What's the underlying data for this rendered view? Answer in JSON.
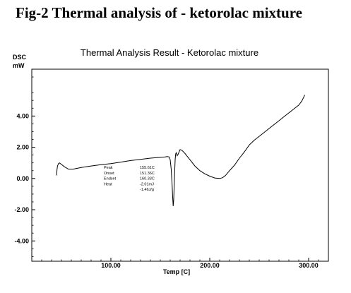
{
  "figure": {
    "caption": "Fig-2 Thermal analysis of - ketorolac mixture"
  },
  "chart_data": {
    "type": "line",
    "title": "Thermal Analysis Result - Ketorolac mixture",
    "ylabel_lines": [
      "DSC",
      "mW"
    ],
    "xlabel": "Temp [C]",
    "xlim": [
      20,
      320
    ],
    "ylim": [
      -5.3,
      7.0
    ],
    "x_ticks": [
      100,
      200,
      300
    ],
    "x_tick_labels": [
      "100.00",
      "200.00",
      "300.00"
    ],
    "y_ticks": [
      4,
      2,
      0,
      -2,
      -4
    ],
    "y_tick_labels": [
      "4.00",
      "2.00",
      "0.00",
      "-2.00",
      "-4.00"
    ],
    "grid": false,
    "colors": {
      "line": "#000000",
      "axes": "#000000"
    },
    "series": [
      {
        "x": [
          45,
          45.5,
          46,
          47,
          48,
          50,
          53,
          57,
          62,
          70,
          80,
          90,
          100,
          110,
          120,
          130,
          140,
          150,
          155,
          157,
          159,
          160,
          161,
          162,
          162.5,
          163,
          163.5,
          164,
          164.5,
          165,
          165.5,
          166,
          166.5,
          167,
          168,
          170,
          172,
          175,
          180,
          185,
          190,
          195,
          200,
          205,
          210,
          213,
          216,
          220,
          225,
          230,
          235,
          240,
          245,
          250,
          255,
          260,
          265,
          270,
          275,
          280,
          285,
          290,
          293,
          295,
          296
        ],
        "y": [
          0.2,
          0.55,
          0.8,
          0.95,
          1.0,
          0.9,
          0.75,
          0.6,
          0.6,
          0.7,
          0.8,
          0.88,
          0.95,
          1.05,
          1.15,
          1.22,
          1.3,
          1.35,
          1.38,
          1.4,
          1.38,
          1.2,
          0.6,
          -0.5,
          -1.2,
          -1.77,
          -1.4,
          -0.5,
          0.4,
          1.2,
          1.55,
          1.65,
          1.6,
          1.45,
          1.55,
          1.85,
          1.8,
          1.6,
          1.2,
          0.8,
          0.5,
          0.3,
          0.15,
          0.03,
          0.0,
          0.05,
          0.2,
          0.5,
          0.85,
          1.3,
          1.7,
          2.15,
          2.45,
          2.7,
          2.95,
          3.2,
          3.45,
          3.7,
          3.95,
          4.2,
          4.45,
          4.7,
          4.95,
          5.2,
          5.35
        ]
      }
    ],
    "annotations": [
      {
        "label": "Peak",
        "value": "155.61C"
      },
      {
        "label": "Onset",
        "value": "151.36C"
      },
      {
        "label": "Endset",
        "value": "160.33C"
      },
      {
        "label": "Heat",
        "value": "-2.01mJ"
      },
      {
        "label": "",
        "value": "-1.46J/g"
      }
    ]
  }
}
